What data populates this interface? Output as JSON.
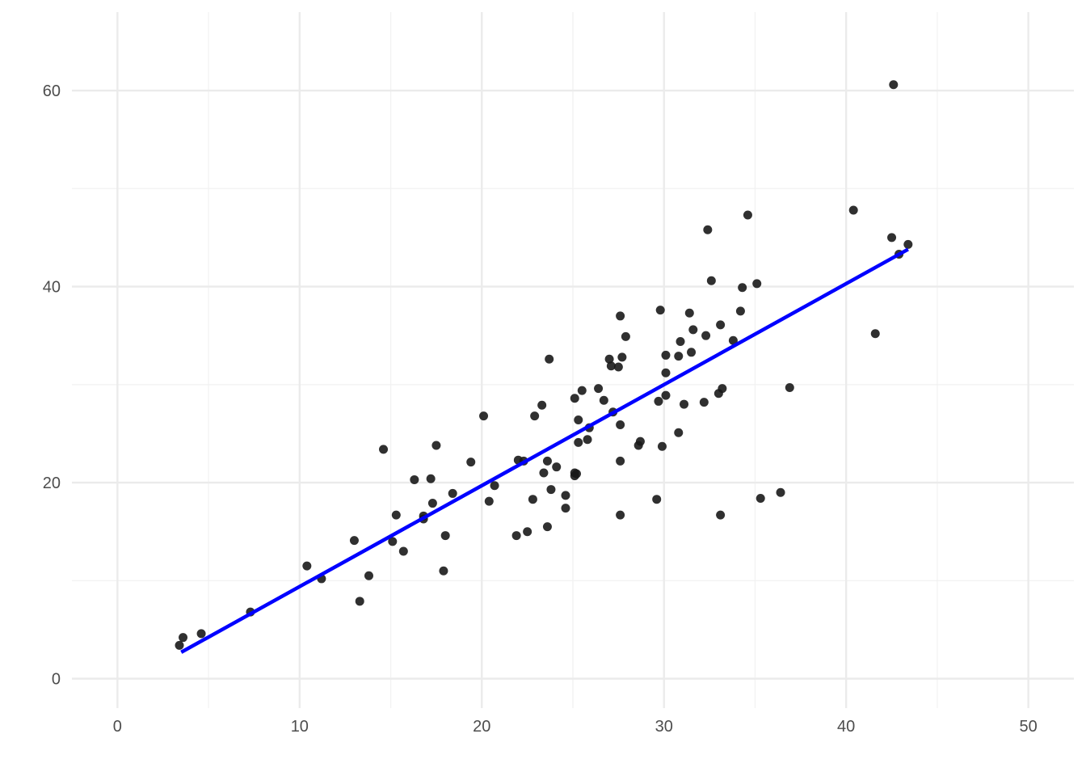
{
  "chart_data": {
    "type": "scatter",
    "title": "",
    "xlabel": "",
    "ylabel": "",
    "xlim": [
      -2.5,
      52.5
    ],
    "ylim": [
      -3,
      68
    ],
    "x_ticks": [
      0,
      10,
      20,
      30,
      40,
      50
    ],
    "y_ticks": [
      0,
      20,
      40,
      60
    ],
    "grid": true,
    "colors": {
      "points": "#1a1a1a",
      "fit_line": "#0000ff",
      "grid_major": "#ebebeb",
      "grid_minor": "#f2f2f2"
    },
    "points": [
      {
        "x": 3.4,
        "y": 3.4
      },
      {
        "x": 3.6,
        "y": 4.2
      },
      {
        "x": 4.6,
        "y": 4.6
      },
      {
        "x": 7.3,
        "y": 6.8
      },
      {
        "x": 10.4,
        "y": 11.5
      },
      {
        "x": 11.2,
        "y": 10.2
      },
      {
        "x": 13.0,
        "y": 14.1
      },
      {
        "x": 13.3,
        "y": 7.9
      },
      {
        "x": 13.8,
        "y": 10.5
      },
      {
        "x": 14.6,
        "y": 23.4
      },
      {
        "x": 15.1,
        "y": 14.0
      },
      {
        "x": 15.3,
        "y": 16.7
      },
      {
        "x": 15.7,
        "y": 13.0
      },
      {
        "x": 16.3,
        "y": 20.3
      },
      {
        "x": 16.8,
        "y": 16.3
      },
      {
        "x": 16.8,
        "y": 16.6
      },
      {
        "x": 17.2,
        "y": 20.4
      },
      {
        "x": 17.3,
        "y": 17.9
      },
      {
        "x": 17.5,
        "y": 23.8
      },
      {
        "x": 17.9,
        "y": 11.0
      },
      {
        "x": 18.0,
        "y": 14.6
      },
      {
        "x": 18.4,
        "y": 18.9
      },
      {
        "x": 19.4,
        "y": 22.1
      },
      {
        "x": 20.1,
        "y": 26.8
      },
      {
        "x": 20.4,
        "y": 18.1
      },
      {
        "x": 20.7,
        "y": 19.7
      },
      {
        "x": 21.9,
        "y": 14.6
      },
      {
        "x": 22.0,
        "y": 22.3
      },
      {
        "x": 22.3,
        "y": 22.2
      },
      {
        "x": 22.5,
        "y": 15.0
      },
      {
        "x": 22.8,
        "y": 18.3
      },
      {
        "x": 22.9,
        "y": 26.8
      },
      {
        "x": 23.3,
        "y": 27.9
      },
      {
        "x": 23.4,
        "y": 21.0
      },
      {
        "x": 23.6,
        "y": 15.5
      },
      {
        "x": 23.6,
        "y": 22.2
      },
      {
        "x": 23.7,
        "y": 32.6
      },
      {
        "x": 23.8,
        "y": 19.3
      },
      {
        "x": 24.1,
        "y": 21.6
      },
      {
        "x": 24.6,
        "y": 18.7
      },
      {
        "x": 24.6,
        "y": 17.4
      },
      {
        "x": 25.1,
        "y": 20.7
      },
      {
        "x": 25.1,
        "y": 21.0
      },
      {
        "x": 25.1,
        "y": 28.6
      },
      {
        "x": 25.2,
        "y": 20.9
      },
      {
        "x": 25.3,
        "y": 24.1
      },
      {
        "x": 25.3,
        "y": 26.4
      },
      {
        "x": 25.5,
        "y": 29.4
      },
      {
        "x": 25.8,
        "y": 24.4
      },
      {
        "x": 25.9,
        "y": 25.6
      },
      {
        "x": 26.4,
        "y": 29.6
      },
      {
        "x": 26.7,
        "y": 28.4
      },
      {
        "x": 27.0,
        "y": 32.6
      },
      {
        "x": 27.1,
        "y": 31.9
      },
      {
        "x": 27.2,
        "y": 27.2
      },
      {
        "x": 27.5,
        "y": 31.8
      },
      {
        "x": 27.6,
        "y": 37.0
      },
      {
        "x": 27.6,
        "y": 22.2
      },
      {
        "x": 27.6,
        "y": 25.9
      },
      {
        "x": 27.6,
        "y": 16.7
      },
      {
        "x": 27.7,
        "y": 32.8
      },
      {
        "x": 27.9,
        "y": 34.9
      },
      {
        "x": 28.6,
        "y": 23.8
      },
      {
        "x": 28.7,
        "y": 24.2
      },
      {
        "x": 29.6,
        "y": 18.3
      },
      {
        "x": 29.7,
        "y": 28.3
      },
      {
        "x": 29.8,
        "y": 37.6
      },
      {
        "x": 29.9,
        "y": 23.7
      },
      {
        "x": 30.1,
        "y": 33.0
      },
      {
        "x": 30.1,
        "y": 28.9
      },
      {
        "x": 30.1,
        "y": 31.2
      },
      {
        "x": 30.8,
        "y": 32.9
      },
      {
        "x": 30.8,
        "y": 25.1
      },
      {
        "x": 30.9,
        "y": 34.4
      },
      {
        "x": 31.1,
        "y": 28.0
      },
      {
        "x": 31.4,
        "y": 37.3
      },
      {
        "x": 31.5,
        "y": 33.3
      },
      {
        "x": 31.6,
        "y": 35.6
      },
      {
        "x": 32.2,
        "y": 28.2
      },
      {
        "x": 32.3,
        "y": 35.0
      },
      {
        "x": 32.4,
        "y": 45.8
      },
      {
        "x": 32.6,
        "y": 40.6
      },
      {
        "x": 33.0,
        "y": 29.1
      },
      {
        "x": 33.1,
        "y": 36.1
      },
      {
        "x": 33.1,
        "y": 16.7
      },
      {
        "x": 33.2,
        "y": 29.6
      },
      {
        "x": 33.8,
        "y": 34.5
      },
      {
        "x": 34.2,
        "y": 37.5
      },
      {
        "x": 34.3,
        "y": 39.9
      },
      {
        "x": 34.6,
        "y": 47.3
      },
      {
        "x": 35.1,
        "y": 40.3
      },
      {
        "x": 35.3,
        "y": 18.4
      },
      {
        "x": 36.4,
        "y": 19.0
      },
      {
        "x": 36.9,
        "y": 29.7
      },
      {
        "x": 40.4,
        "y": 47.8
      },
      {
        "x": 41.6,
        "y": 35.2
      },
      {
        "x": 42.5,
        "y": 45.0
      },
      {
        "x": 42.6,
        "y": 60.6
      },
      {
        "x": 42.9,
        "y": 43.3
      },
      {
        "x": 43.4,
        "y": 44.3
      }
    ],
    "fit_line": {
      "x": [
        3.5,
        43.4
      ],
      "y": [
        2.7,
        43.8
      ]
    }
  }
}
